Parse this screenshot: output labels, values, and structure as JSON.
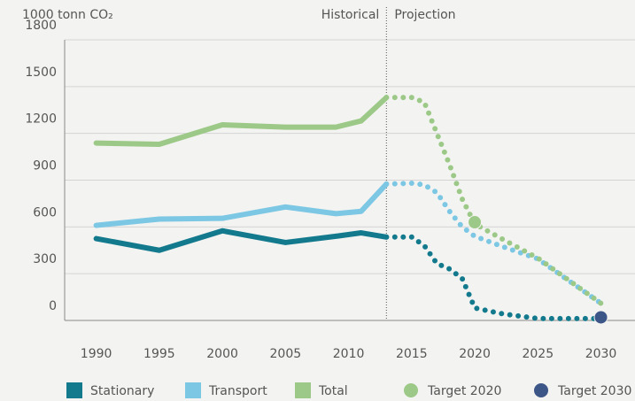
{
  "chart_data": {
    "type": "line",
    "y_label": "1000 tonn CO₂",
    "annotations": [
      "Historical",
      "Projection"
    ],
    "divider_x": 2013,
    "x": [
      1990,
      1995,
      2000,
      2005,
      2009,
      2011,
      2013,
      2015,
      2016,
      2017,
      2018,
      2019,
      2020,
      2022,
      2025,
      2030
    ],
    "xlim": [
      1987.5,
      2032.7
    ],
    "xticks": [
      1990,
      1995,
      2000,
      2005,
      2010,
      2015,
      2020,
      2025,
      2030
    ],
    "ylim": [
      0,
      1800
    ],
    "yticks": [
      0,
      300,
      600,
      900,
      1200,
      1500,
      1800
    ],
    "grid": true,
    "series": [
      {
        "name": "Stationary",
        "color": "#137a8e",
        "values": [
          525,
          450,
          575,
          500,
          540,
          562,
          535,
          535,
          480,
          365,
          330,
          270,
          80,
          45,
          12,
          12
        ]
      },
      {
        "name": "Transport",
        "color": "#7cc7e3",
        "values": [
          610,
          650,
          655,
          728,
          685,
          700,
          875,
          880,
          870,
          820,
          700,
          600,
          540,
          480,
          395,
          110
        ]
      },
      {
        "name": "Total",
        "color": "#9cc987",
        "values": [
          1138,
          1130,
          1255,
          1240,
          1240,
          1280,
          1430,
          1430,
          1400,
          1200,
          1000,
          780,
          620,
          530,
          400,
          110
        ]
      }
    ],
    "targets": [
      {
        "name": "Target 2020",
        "color": "#9cc987",
        "x": 2020,
        "value": 630
      },
      {
        "name": "Target 2030",
        "color": "#3d5688",
        "x": 2030,
        "value": 20
      }
    ]
  }
}
